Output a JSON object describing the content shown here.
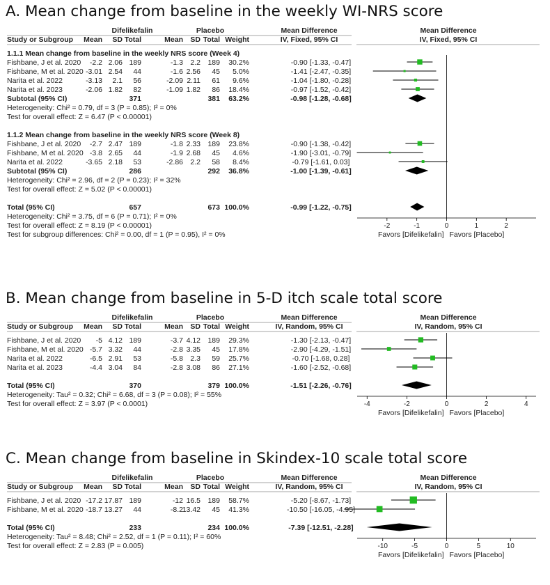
{
  "panels": [
    {
      "id": "A",
      "title": "A. Mean change from baseline in the weekly WI-NRS score",
      "columns": {
        "group1": "Difelikefalin",
        "group2": "Placebo",
        "study": "Study or Subgroup",
        "mean": "Mean",
        "sd": "SD",
        "total": "Total",
        "weight": "Weight",
        "md_title": "Mean Difference",
        "md_method": "IV, Fixed, 95% CI",
        "plot_method": "IV, Fixed, 95% CI"
      },
      "favors_left": "Favors [Difelikefalin]",
      "favors_right": "Favors [Placebo]"
    },
    {
      "id": "B",
      "title": "B. Mean change from baseline in 5-D itch scale total score",
      "columns": {
        "group1": "Difelikefalin",
        "group2": "Placebo",
        "study": "Study or Subgroup",
        "mean": "Mean",
        "sd": "SD",
        "total": "Total",
        "weight": "Weight",
        "md_title": "Mean Difference",
        "md_method": "IV, Random, 95% CI",
        "plot_method": "IV, Random, 95% CI"
      },
      "favors_left": "Favors [Difelikefalin]",
      "favors_right": "Favors [Placebo]"
    },
    {
      "id": "C",
      "title": "C. Mean change from baseline in Skindex-10 scale total score",
      "columns": {
        "group1": "Difelikefalin",
        "group2": "Placebo",
        "study": "Study or Subgroup",
        "mean": "Mean",
        "sd": "SD",
        "total": "Total",
        "weight": "Weight",
        "md_title": "Mean Difference",
        "md_method": "IV, Random, 95% CI",
        "plot_method": "IV, Random, 95% CI"
      },
      "favors_left": "Favors [Difelikefalin]",
      "favors_right": "Favors [Placebo]"
    }
  ],
  "chart_data": [
    {
      "type": "forest",
      "panel": "A",
      "xlim": [
        -3,
        3
      ],
      "ticks": [
        -2,
        -1,
        0,
        1,
        2
      ],
      "marker_color": "#22bb22",
      "rows": [
        {
          "kind": "header",
          "label": "1.1.1 Mean change from baseline in the weekly NRS score (Week 4)"
        },
        {
          "kind": "study",
          "label": "Fishbane, J et al. 2020",
          "m1": "-2.2",
          "sd1": "2.06",
          "n1": "189",
          "m2": "-1.3",
          "sd2": "2.2",
          "n2": "189",
          "weight": "30.2%",
          "ci_text": "-0.90 [-1.33, -0.47]",
          "md": -0.9,
          "lo": -1.33,
          "hi": -0.47,
          "w": 30.2
        },
        {
          "kind": "study",
          "label": "Fishbane, M et al. 2020",
          "m1": "-3.01",
          "sd1": "2.54",
          "n1": "44",
          "m2": "-1.6",
          "sd2": "2.56",
          "n2": "45",
          "weight": "5.0%",
          "ci_text": "-1.41 [-2.47, -0.35]",
          "md": -1.41,
          "lo": -2.47,
          "hi": -0.35,
          "w": 5.0
        },
        {
          "kind": "study",
          "label": "Narita et al. 2022",
          "m1": "-3.13",
          "sd1": "2.1",
          "n1": "56",
          "m2": "-2.09",
          "sd2": "2.11",
          "n2": "61",
          "weight": "9.6%",
          "ci_text": "-1.04 [-1.80, -0.28]",
          "md": -1.04,
          "lo": -1.8,
          "hi": -0.28,
          "w": 9.6
        },
        {
          "kind": "study",
          "label": "Narita et al. 2023",
          "m1": "-2.06",
          "sd1": "1.82",
          "n1": "82",
          "m2": "-1.09",
          "sd2": "1.82",
          "n2": "86",
          "weight": "18.4%",
          "ci_text": "-0.97 [-1.52, -0.42]",
          "md": -0.97,
          "lo": -1.52,
          "hi": -0.42,
          "w": 18.4
        },
        {
          "kind": "subtotal",
          "label": "Subtotal (95% CI)",
          "n1": "371",
          "n2": "381",
          "weight": "63.2%",
          "ci_text": "-0.98 [-1.28, -0.68]",
          "md": -0.98,
          "lo": -1.28,
          "hi": -0.68
        },
        {
          "kind": "note",
          "text": "Heterogeneity: Chi² = 0.79, df = 3 (P = 0.85); I² = 0%"
        },
        {
          "kind": "note",
          "text": "Test for overall effect: Z = 6.47 (P < 0.00001)"
        },
        {
          "kind": "blank"
        },
        {
          "kind": "header",
          "label": "1.1.2 Mean change from baseline in the weekly NRS score (Week 8)"
        },
        {
          "kind": "study",
          "label": "Fishbane, J et al. 2020",
          "m1": "-2.7",
          "sd1": "2.47",
          "n1": "189",
          "m2": "-1.8",
          "sd2": "2.33",
          "n2": "189",
          "weight": "23.8%",
          "ci_text": "-0.90 [-1.38, -0.42]",
          "md": -0.9,
          "lo": -1.38,
          "hi": -0.42,
          "w": 23.8
        },
        {
          "kind": "study",
          "label": "Fishbane, M et al. 2020",
          "m1": "-3.8",
          "sd1": "2.65",
          "n1": "44",
          "m2": "-1.9",
          "sd2": "2.68",
          "n2": "45",
          "weight": "4.6%",
          "ci_text": "-1.90 [-3.01, -0.79]",
          "md": -1.9,
          "lo": -3.01,
          "hi": -0.79,
          "w": 4.6
        },
        {
          "kind": "study",
          "label": "Narita et al. 2022",
          "m1": "-3.65",
          "sd1": "2.18",
          "n1": "53",
          "m2": "-2.86",
          "sd2": "2.2",
          "n2": "58",
          "weight": "8.4%",
          "ci_text": "-0.79 [-1.61, 0.03]",
          "md": -0.79,
          "lo": -1.61,
          "hi": 0.03,
          "w": 8.4
        },
        {
          "kind": "subtotal",
          "label": "Subtotal (95% CI)",
          "n1": "286",
          "n2": "292",
          "weight": "36.8%",
          "ci_text": "-1.00 [-1.39, -0.61]",
          "md": -1.0,
          "lo": -1.39,
          "hi": -0.61
        },
        {
          "kind": "note",
          "text": "Heterogeneity: Chi² = 2.96, df = 2 (P = 0.23); I² = 32%"
        },
        {
          "kind": "note",
          "text": "Test for overall effect: Z = 5.02 (P < 0.00001)"
        },
        {
          "kind": "blank"
        },
        {
          "kind": "total",
          "label": "Total (95% CI)",
          "n1": "657",
          "n2": "673",
          "weight": "100.0%",
          "ci_text": "-0.99 [-1.22, -0.75]",
          "md": -0.99,
          "lo": -1.22,
          "hi": -0.75
        },
        {
          "kind": "note",
          "text": "Heterogeneity: Chi² = 3.75, df = 6 (P = 0.71); I² = 0%"
        },
        {
          "kind": "note",
          "text": "Test for overall effect: Z = 8.19 (P < 0.00001)"
        },
        {
          "kind": "note",
          "text": "Test for subgroup differences: Chi² = 0.00, df = 1 (P = 0.95), I² = 0%"
        }
      ]
    },
    {
      "type": "forest",
      "panel": "B",
      "xlim": [
        -4.5,
        4.5
      ],
      "ticks": [
        -4,
        -2,
        0,
        2,
        4
      ],
      "marker_color": "#22bb22",
      "rows": [
        {
          "kind": "study",
          "label": "Fishbane, J et al. 2020",
          "m1": "-5",
          "sd1": "4.12",
          "n1": "189",
          "m2": "-3.7",
          "sd2": "4.12",
          "n2": "189",
          "weight": "29.3%",
          "ci_text": "-1.30 [-2.13, -0.47]",
          "md": -1.3,
          "lo": -2.13,
          "hi": -0.47,
          "w": 29.3
        },
        {
          "kind": "study",
          "label": "Fishbane, M et al. 2020",
          "m1": "-5.7",
          "sd1": "3.32",
          "n1": "44",
          "m2": "-2.8",
          "sd2": "3.35",
          "n2": "45",
          "weight": "17.8%",
          "ci_text": "-2.90 [-4.29, -1.51]",
          "md": -2.9,
          "lo": -4.29,
          "hi": -1.51,
          "w": 17.8
        },
        {
          "kind": "study",
          "label": "Narita et al. 2022",
          "m1": "-6.5",
          "sd1": "2.91",
          "n1": "53",
          "m2": "-5.8",
          "sd2": "2.3",
          "n2": "59",
          "weight": "25.7%",
          "ci_text": "-0.70 [-1.68, 0.28]",
          "md": -0.7,
          "lo": -1.68,
          "hi": 0.28,
          "w": 25.7
        },
        {
          "kind": "study",
          "label": "Narita et al. 2023",
          "m1": "-4.4",
          "sd1": "3.04",
          "n1": "84",
          "m2": "-2.8",
          "sd2": "3.08",
          "n2": "86",
          "weight": "27.1%",
          "ci_text": "-1.60 [-2.52, -0.68]",
          "md": -1.6,
          "lo": -2.52,
          "hi": -0.68,
          "w": 27.1
        },
        {
          "kind": "blank"
        },
        {
          "kind": "total",
          "label": "Total (95% CI)",
          "n1": "370",
          "n2": "379",
          "weight": "100.0%",
          "ci_text": "-1.51 [-2.26, -0.76]",
          "md": -1.51,
          "lo": -2.26,
          "hi": -0.76
        },
        {
          "kind": "note",
          "text": "Heterogeneity: Tau² = 0.32; Chi² = 6.68, df = 3 (P = 0.08); I² = 55%"
        },
        {
          "kind": "note",
          "text": "Test for overall effect: Z = 3.97 (P < 0.0001)"
        }
      ]
    },
    {
      "type": "forest",
      "panel": "C",
      "xlim": [
        -14,
        14
      ],
      "ticks": [
        -10,
        -5,
        0,
        5,
        10
      ],
      "marker_color": "#22bb22",
      "rows": [
        {
          "kind": "study",
          "label": "Fishbane, J et al. 2020",
          "m1": "-17.2",
          "sd1": "17.87",
          "n1": "189",
          "m2": "-12",
          "sd2": "16.5",
          "n2": "189",
          "weight": "58.7%",
          "ci_text": "-5.20 [-8.67, -1.73]",
          "md": -5.2,
          "lo": -8.67,
          "hi": -1.73,
          "w": 58.7
        },
        {
          "kind": "study",
          "label": "Fishbane, M et al. 2020",
          "m1": "-18.7",
          "sd1": "13.27",
          "n1": "44",
          "m2": "-8.2",
          "sd2": "13.42",
          "n2": "45",
          "weight": "41.3%",
          "ci_text": "-10.50 [-16.05, -4.95]",
          "md": -10.5,
          "lo": -16.05,
          "hi": -4.95,
          "w": 41.3
        },
        {
          "kind": "blank"
        },
        {
          "kind": "total",
          "label": "Total (95% CI)",
          "n1": "233",
          "n2": "234",
          "weight": "100.0%",
          "ci_text": "-7.39 [-12.51, -2.28]",
          "md": -7.39,
          "lo": -12.51,
          "hi": -2.28
        },
        {
          "kind": "note",
          "text": "Heterogeneity: Tau² = 8.48; Chi² = 2.52, df = 1 (P = 0.11); I² = 60%"
        },
        {
          "kind": "note",
          "text": "Test for overall effect: Z = 2.83 (P = 0.005)"
        }
      ]
    }
  ]
}
